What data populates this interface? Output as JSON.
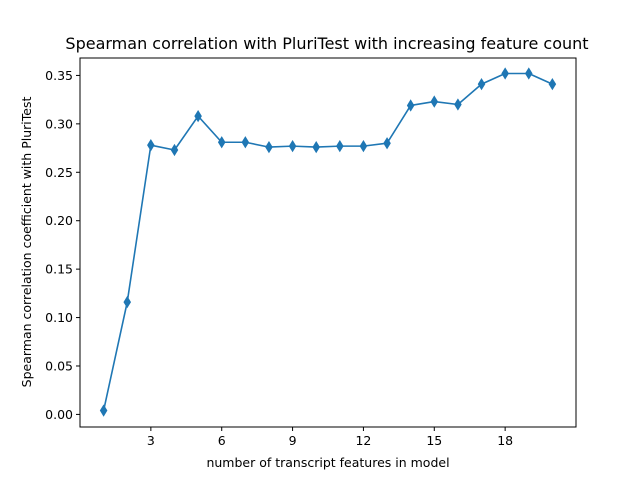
{
  "chart_data": {
    "type": "line",
    "title": "Spearman correlation with PluriTest with increasing feature count",
    "xlabel": "number of transcript features in model",
    "ylabel": "Spearman correlation coefficient with PluriTest",
    "xlim": [
      0,
      21
    ],
    "ylim": [
      -0.013,
      0.368
    ],
    "xticks": [
      "3",
      "6",
      "9",
      "12",
      "15",
      "18"
    ],
    "yticks": [
      "0.00",
      "0.05",
      "0.10",
      "0.15",
      "0.20",
      "0.25",
      "0.30",
      "0.35"
    ],
    "grid": false,
    "marker": "thin_diamond",
    "color": "#1f77b4",
    "series": [
      {
        "x": [
          1,
          2,
          3,
          4,
          5,
          6,
          7,
          8,
          9,
          10,
          11,
          12,
          13,
          14,
          15,
          16,
          17,
          18,
          19,
          20
        ],
        "values": [
          0.004,
          0.116,
          0.278,
          0.273,
          0.308,
          0.281,
          0.281,
          0.276,
          0.277,
          0.276,
          0.277,
          0.277,
          0.28,
          0.319,
          0.323,
          0.32,
          0.341,
          0.352,
          0.352,
          0.341
        ]
      }
    ]
  }
}
